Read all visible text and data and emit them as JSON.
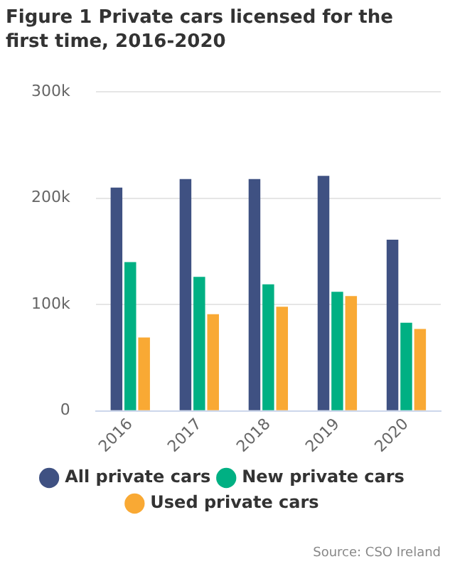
{
  "chart_data": {
    "type": "bar",
    "title": "Figure 1 Private cars licensed for the first time, 2016-2020",
    "categories": [
      "2016",
      "2017",
      "2018",
      "2019",
      "2020"
    ],
    "series": [
      {
        "name": "All private cars",
        "color": "#3f5182",
        "values": [
          210000,
          218000,
          218000,
          221000,
          161000
        ]
      },
      {
        "name": "New private cars",
        "color": "#00b083",
        "values": [
          140000,
          126000,
          119000,
          112000,
          83000
        ]
      },
      {
        "name": "Used private cars",
        "color": "#f9a934",
        "values": [
          69000,
          91000,
          98000,
          108000,
          77000
        ]
      }
    ],
    "ylim": [
      0,
      300000
    ],
    "yticks": [
      0,
      {
        "value": 100000,
        "label": "100k"
      },
      {
        "value": 200000,
        "label": "200k"
      },
      {
        "value": 300000,
        "label": "300k"
      }
    ],
    "grid": "y",
    "legend": "bottom",
    "annotations": [
      "Source: CSO Ireland"
    ]
  }
}
